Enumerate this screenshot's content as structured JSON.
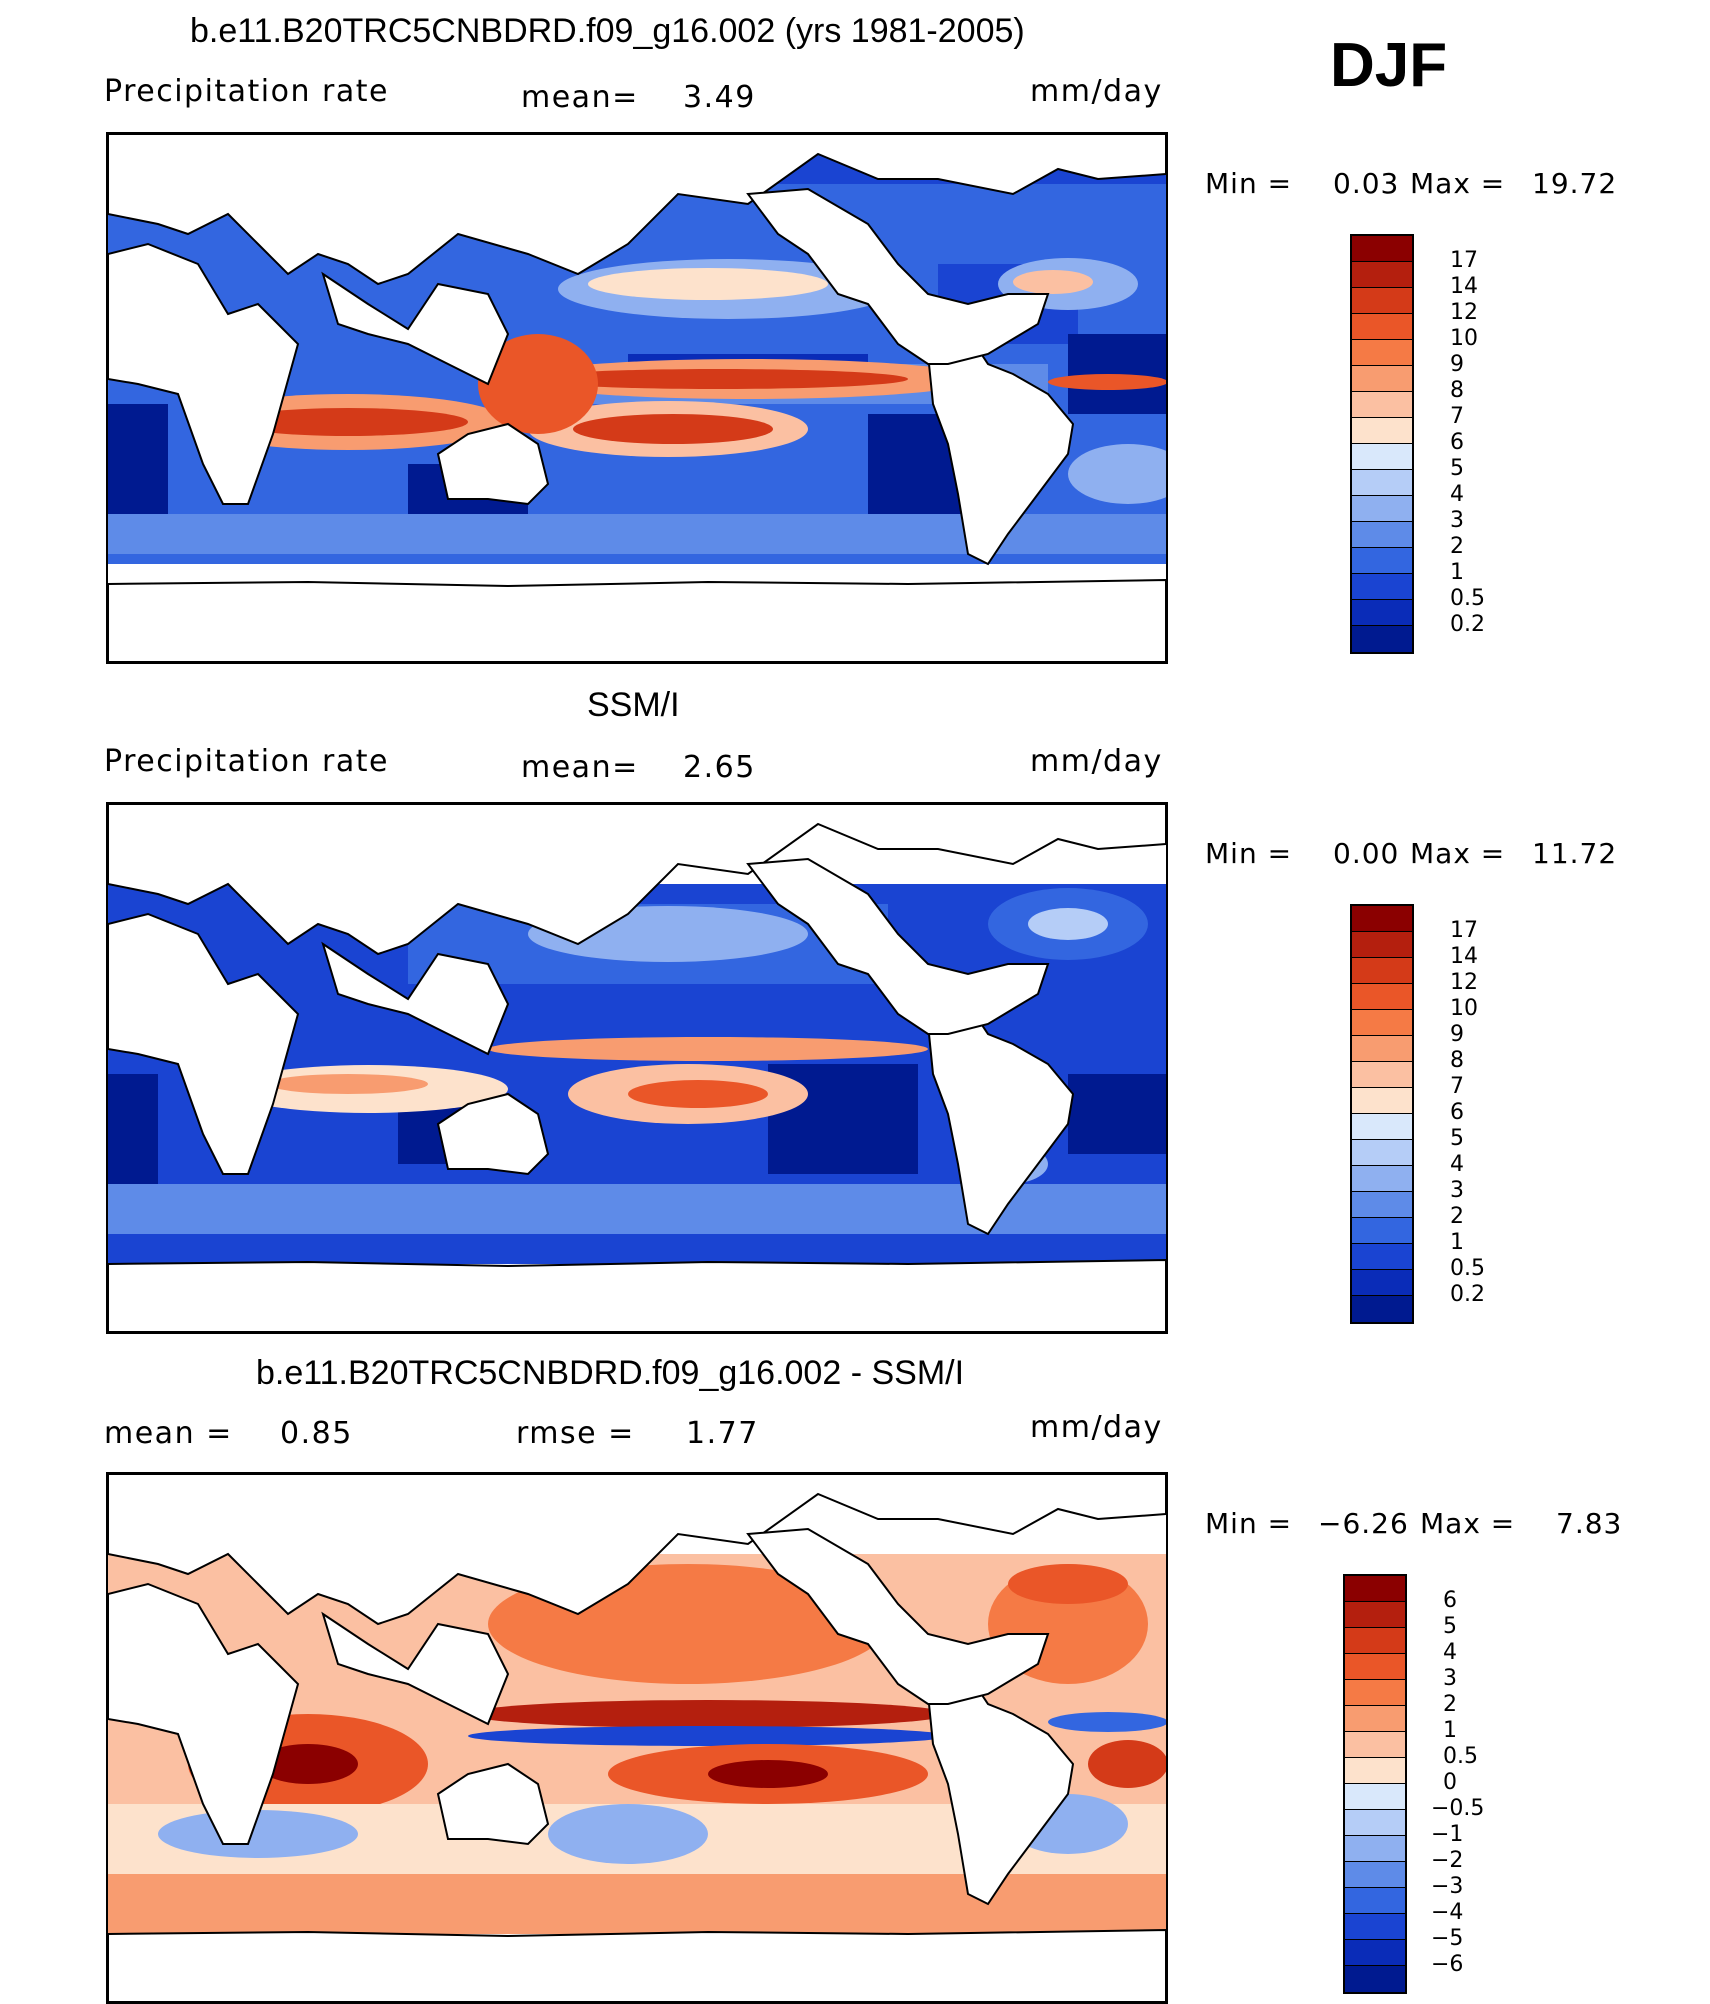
{
  "season_label": "DJF",
  "panels": [
    {
      "title": "b.e11.B20TRC5CNBDRD.f09_g16.002 (yrs 1981-2005)",
      "left_label": "Precipitation  rate",
      "middle_label": "mean=",
      "middle_value": "3.49",
      "units": "mm/day",
      "min_label": "Min  =",
      "min_value": "0.03",
      "max_label": "Max  =",
      "max_value": "19.72",
      "colorbar_labels": [
        "17",
        "14",
        "12",
        "10",
        "9",
        "8",
        "7",
        "6",
        "5",
        "4",
        "3",
        "2",
        "1",
        "0.5",
        "0.2"
      ],
      "colorbar_colors": [
        "#8b0000",
        "#b41f0e",
        "#d43a18",
        "#ea5628",
        "#f57a45",
        "#f89c70",
        "#fbc0a2",
        "#fde2cc",
        "#d9e8fb",
        "#b5cdf7",
        "#8fb0f0",
        "#5e8be8",
        "#3366e0",
        "#1a44d2",
        "#0a2cb8",
        "#001a90"
      ]
    },
    {
      "title": "SSM/I",
      "left_label": "Precipitation  rate",
      "middle_label": "mean=",
      "middle_value": "2.65",
      "units": "mm/day",
      "min_label": "Min  =",
      "min_value": "0.00",
      "max_label": "Max  =",
      "max_value": "11.72",
      "colorbar_labels": [
        "17",
        "14",
        "12",
        "10",
        "9",
        "8",
        "7",
        "6",
        "5",
        "4",
        "3",
        "2",
        "1",
        "0.5",
        "0.2"
      ],
      "colorbar_colors": [
        "#8b0000",
        "#b41f0e",
        "#d43a18",
        "#ea5628",
        "#f57a45",
        "#f89c70",
        "#fbc0a2",
        "#fde2cc",
        "#d9e8fb",
        "#b5cdf7",
        "#8fb0f0",
        "#5e8be8",
        "#3366e0",
        "#1a44d2",
        "#0a2cb8",
        "#001a90"
      ]
    },
    {
      "title": "b.e11.B20TRC5CNBDRD.f09_g16.002 - SSM/I",
      "left_label": "mean =",
      "left_value": "0.85",
      "middle_label": "rmse  =",
      "middle_value": "1.77",
      "units": "mm/day",
      "min_label": "Min  =",
      "min_value": "−6.26",
      "max_label": "Max  =",
      "max_value": "7.83",
      "colorbar_labels": [
        "6",
        "5",
        "4",
        "3",
        "2",
        "1",
        "0.5",
        "0",
        "−0.5",
        "−1",
        "−2",
        "−3",
        "−4",
        "−5",
        "−6"
      ],
      "colorbar_colors": [
        "#8b0000",
        "#b41f0e",
        "#d43a18",
        "#ea5628",
        "#f57a45",
        "#f89c70",
        "#fbc0a2",
        "#fde2cc",
        "#d9e8fb",
        "#b5cdf7",
        "#8fb0f0",
        "#5e8be8",
        "#3366e0",
        "#1a44d2",
        "#0a2cb8",
        "#001a90"
      ]
    }
  ],
  "map_colors": {
    "deep_blue": "#001a90",
    "blue": "#1a44d2",
    "mid_blue": "#3366e0",
    "light_blue": "#8fb0f0",
    "pale_blue": "#d9e8fb",
    "cream": "#fde2cc",
    "peach": "#f89c70",
    "orange": "#ea5628",
    "red": "#d43a18",
    "dark_red": "#8b0000",
    "land": "#ffffff"
  }
}
